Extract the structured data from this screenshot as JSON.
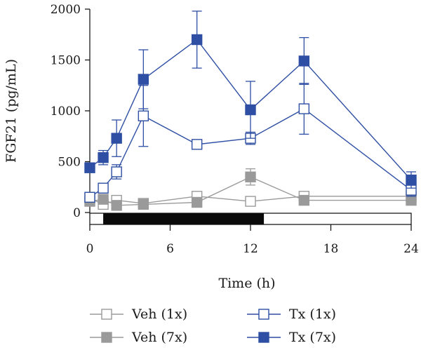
{
  "chart_data": {
    "type": "line",
    "xlabel": "Time (h)",
    "ylabel": "FGF21 (pg/mL)",
    "xlim": [
      0,
      24
    ],
    "ylim": [
      0,
      2000
    ],
    "xticks": [
      0,
      6,
      12,
      18,
      24
    ],
    "yticks": [
      0,
      500,
      1000,
      1500,
      2000
    ],
    "legend_position": "bottom",
    "light_dark_bar": {
      "dark_start": 1,
      "dark_end": 13
    },
    "series": [
      {
        "name": "Veh (1x)",
        "marker": "square",
        "fill": "open",
        "color": "#9a9a9a",
        "x": [
          0,
          1,
          2,
          4,
          8,
          12,
          16,
          24
        ],
        "y": [
          140,
          80,
          120,
          90,
          160,
          110,
          160,
          160
        ],
        "err": [
          30,
          25,
          30,
          20,
          30,
          25,
          30,
          30
        ]
      },
      {
        "name": "Veh (7x)",
        "marker": "square",
        "fill": "solid",
        "color": "#9a9a9a",
        "x": [
          0,
          1,
          2,
          4,
          8,
          12,
          16,
          24
        ],
        "y": [
          110,
          130,
          70,
          80,
          100,
          350,
          120,
          120
        ],
        "err": [
          25,
          30,
          20,
          20,
          25,
          80,
          25,
          25
        ]
      },
      {
        "name": "Tx (1x)",
        "marker": "square",
        "fill": "open",
        "color": "#2e4fa3",
        "x": [
          0,
          1,
          2,
          4,
          8,
          12,
          16,
          24
        ],
        "y": [
          150,
          240,
          400,
          950,
          670,
          730,
          1020,
          220
        ],
        "err": [
          40,
          40,
          70,
          300,
          40,
          60,
          250,
          60
        ]
      },
      {
        "name": "Tx (7x)",
        "marker": "square",
        "fill": "solid",
        "color": "#2e4fa3",
        "x": [
          0,
          1,
          2,
          4,
          8,
          12,
          16,
          24
        ],
        "y": [
          440,
          540,
          730,
          1310,
          1700,
          1010,
          1490,
          320
        ],
        "err": [
          40,
          70,
          180,
          290,
          280,
          280,
          230,
          80
        ]
      }
    ]
  }
}
